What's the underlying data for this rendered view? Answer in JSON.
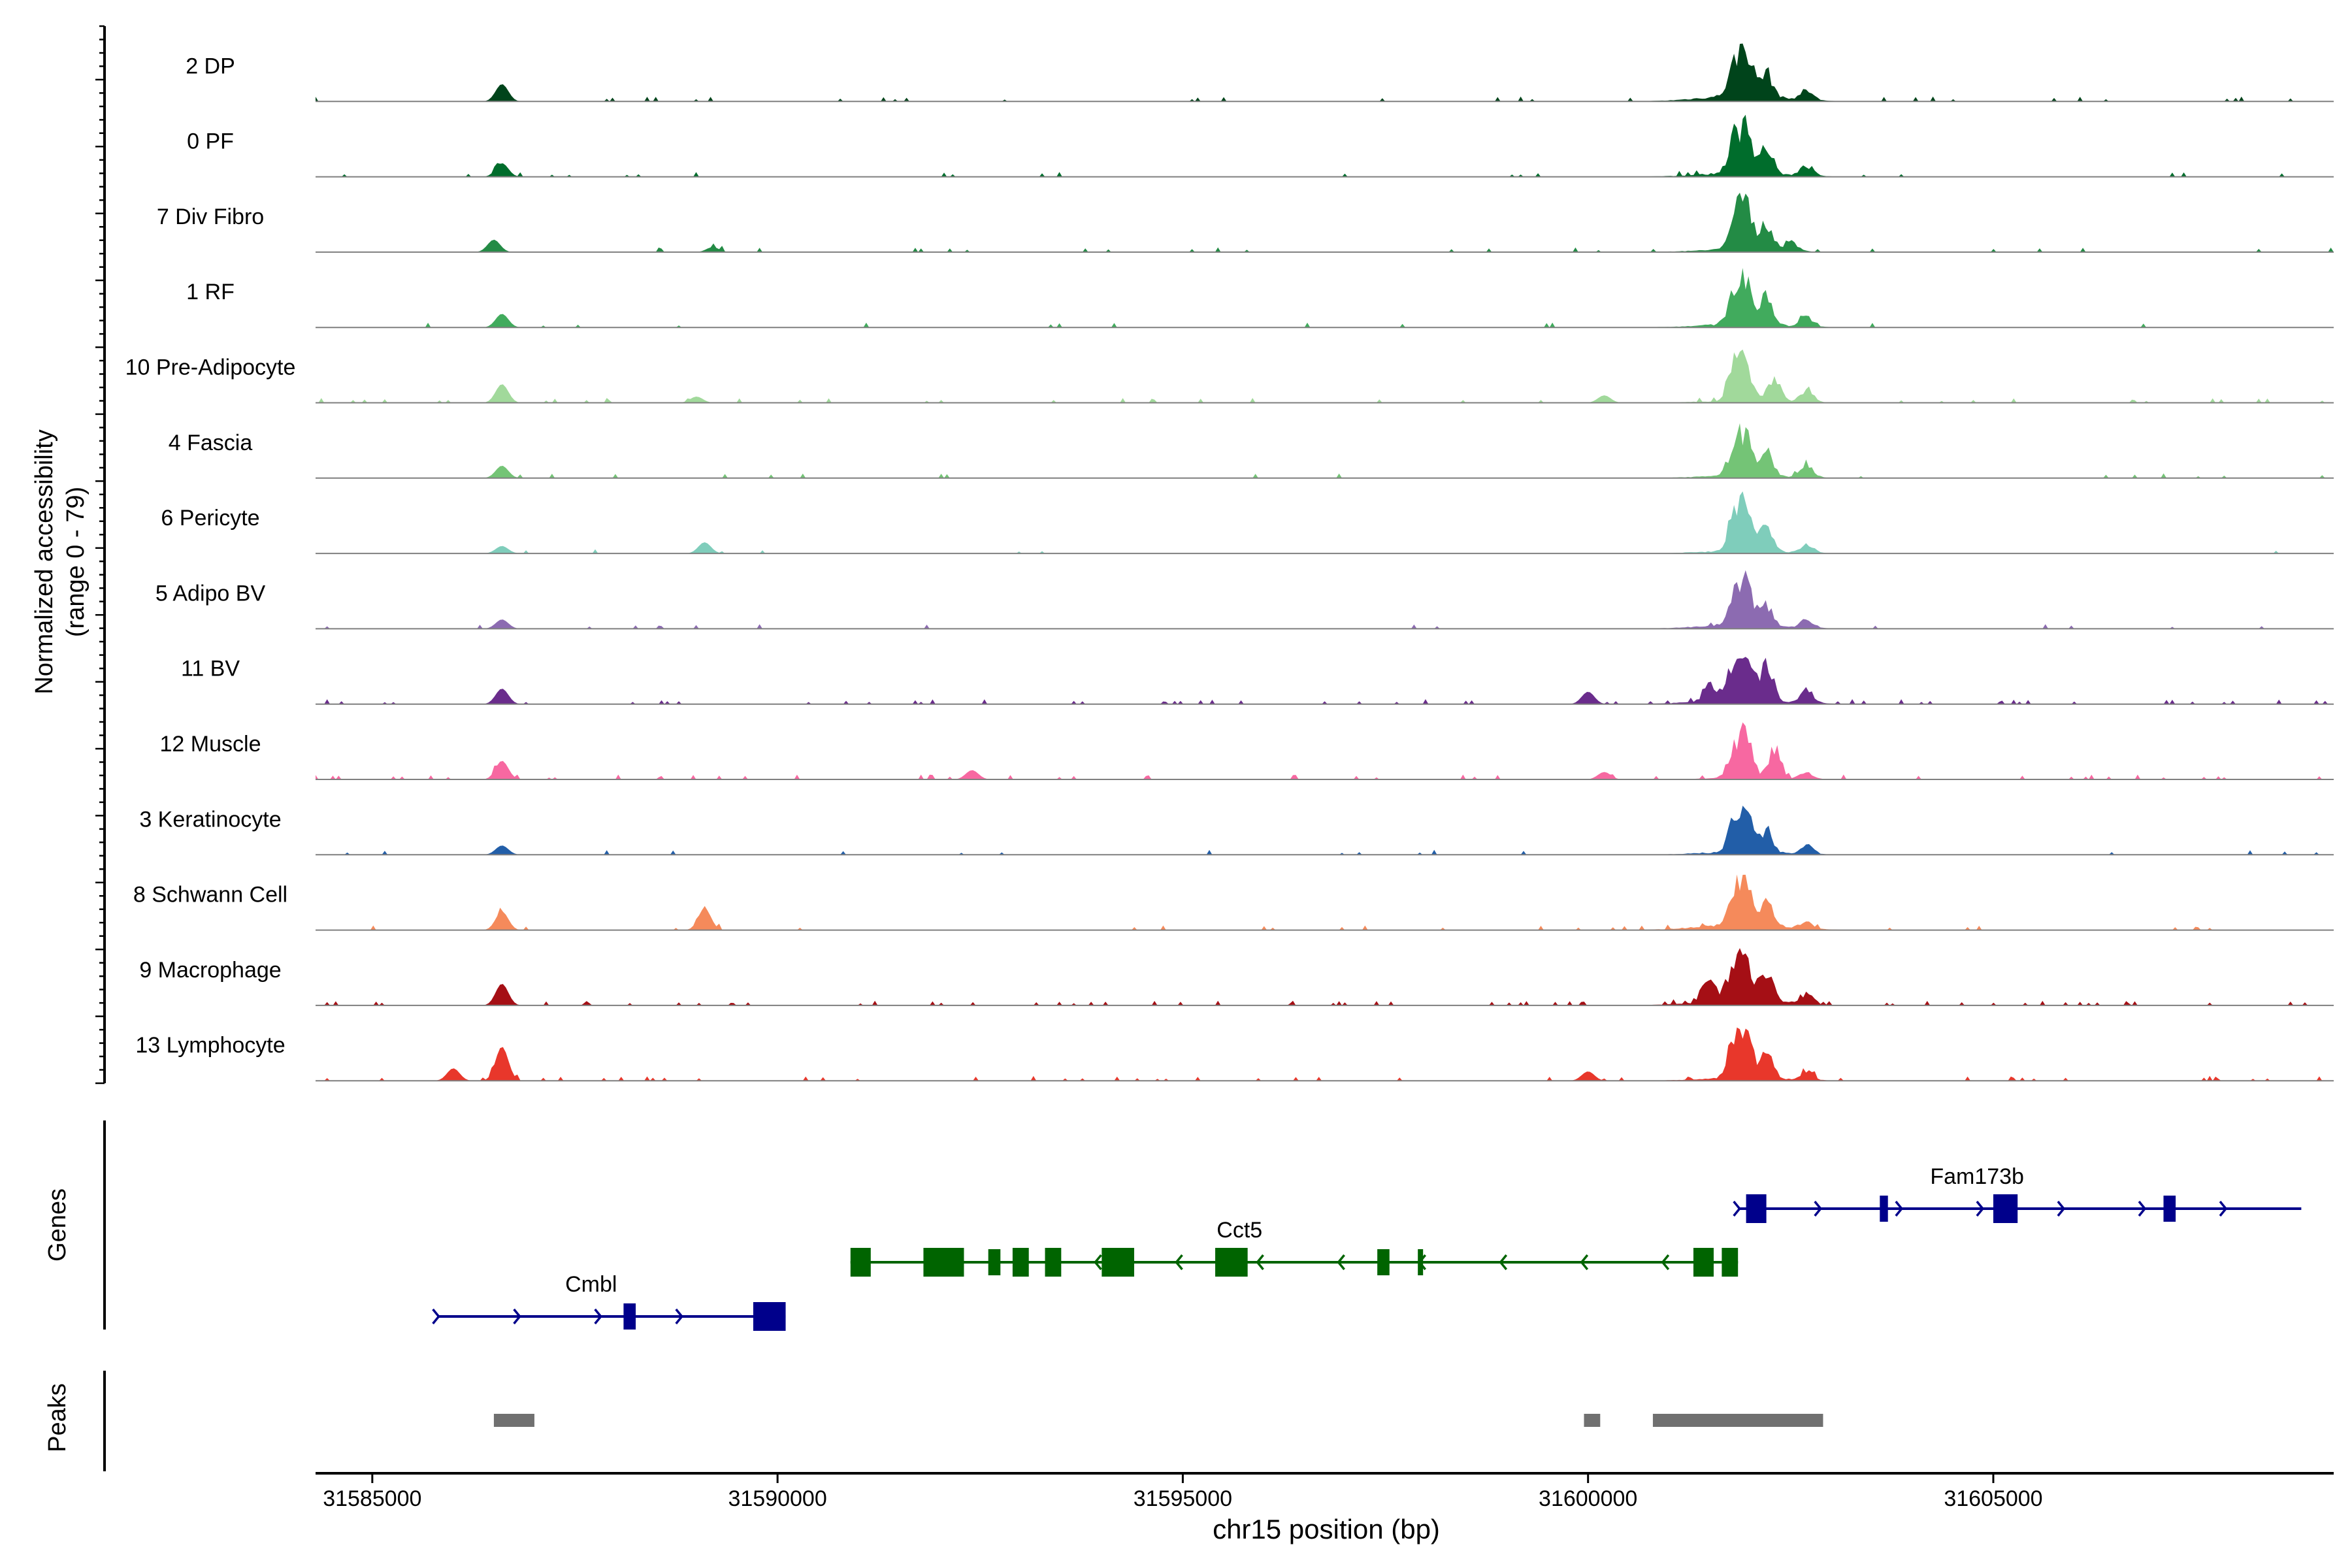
{
  "chart_data": {
    "type": "area",
    "title": "",
    "chromosome": "chr15",
    "xlabel": "chr15 position (bp)",
    "ylabel": "Normalized accessibility",
    "ylabel_range": "(range 0 - 79)",
    "xlim": [
      31584300,
      31609200
    ],
    "x_ticks": [
      31585000,
      31590000,
      31595000,
      31600000,
      31605000
    ],
    "x_tick_labels": [
      "31585000",
      "31590000",
      "31595000",
      "31600000",
      "31605000"
    ],
    "ylim": [
      0,
      79
    ],
    "panels": {
      "genes_label": "Genes",
      "peaks_label": "Peaks"
    },
    "tracks": [
      {
        "name": "2 DP",
        "color": "#00441b",
        "peaks": [
          [
            31586600,
            0.28
          ],
          [
            31601800,
            0.55
          ],
          [
            31601950,
            0.95
          ],
          [
            31602200,
            0.5
          ],
          [
            31602700,
            0.2
          ]
        ],
        "noise": 0.04,
        "broad": 0.12
      },
      {
        "name": "0 PF",
        "color": "#006d2c",
        "peaks": [
          [
            31586600,
            0.22
          ],
          [
            31601800,
            0.62
          ],
          [
            31601950,
            0.85
          ],
          [
            31602200,
            0.55
          ],
          [
            31602700,
            0.2
          ]
        ],
        "noise": 0.03,
        "broad": 0.08
      },
      {
        "name": "7 Div Fibro",
        "color": "#238b45",
        "peaks": [
          [
            31586500,
            0.2
          ],
          [
            31589200,
            0.08
          ],
          [
            31601800,
            0.6
          ],
          [
            31601950,
            0.9
          ],
          [
            31602200,
            0.55
          ],
          [
            31602500,
            0.2
          ]
        ],
        "noise": 0.04,
        "broad": 0.06
      },
      {
        "name": "1 RF",
        "color": "#41ab5d",
        "peaks": [
          [
            31586600,
            0.22
          ],
          [
            31601800,
            0.62
          ],
          [
            31601950,
            0.85
          ],
          [
            31602200,
            0.55
          ],
          [
            31602700,
            0.2
          ]
        ],
        "noise": 0.02,
        "broad": 0.07
      },
      {
        "name": "10 Pre-Adipocyte",
        "color": "#a1d99b",
        "peaks": [
          [
            31586600,
            0.3
          ],
          [
            31589000,
            0.1
          ],
          [
            31600200,
            0.12
          ],
          [
            31601800,
            0.72
          ],
          [
            31601950,
            0.72
          ],
          [
            31602300,
            0.5
          ],
          [
            31602700,
            0.28
          ]
        ],
        "noise": 0.05,
        "broad": 0.04
      },
      {
        "name": "4 Fascia",
        "color": "#74c476",
        "peaks": [
          [
            31586600,
            0.2
          ],
          [
            31601800,
            0.55
          ],
          [
            31601950,
            0.8
          ],
          [
            31602200,
            0.55
          ],
          [
            31602700,
            0.3
          ]
        ],
        "noise": 0.02,
        "broad": 0.05
      },
      {
        "name": "6 Pericyte",
        "color": "#7fcdbb",
        "peaks": [
          [
            31586600,
            0.12
          ],
          [
            31589100,
            0.18
          ],
          [
            31601800,
            0.7
          ],
          [
            31601950,
            0.85
          ],
          [
            31602200,
            0.5
          ],
          [
            31602700,
            0.18
          ]
        ],
        "noise": 0.02,
        "broad": 0.05
      },
      {
        "name": "5 Adipo BV",
        "color": "#8c6bb1",
        "peaks": [
          [
            31586600,
            0.15
          ],
          [
            31601800,
            0.55
          ],
          [
            31601950,
            0.85
          ],
          [
            31602200,
            0.45
          ],
          [
            31602700,
            0.18
          ]
        ],
        "noise": 0.02,
        "broad": 0.08
      },
      {
        "name": "11 BV",
        "color": "#6a2c8c",
        "peaks": [
          [
            31586600,
            0.25
          ],
          [
            31600000,
            0.2
          ],
          [
            31601500,
            0.3
          ],
          [
            31601800,
            0.7
          ],
          [
            31601950,
            0.85
          ],
          [
            31602200,
            0.7
          ],
          [
            31602700,
            0.3
          ]
        ],
        "noise": 0.08,
        "broad": 0.1
      },
      {
        "name": "12 Muscle",
        "color": "#f768a1",
        "peaks": [
          [
            31586600,
            0.3
          ],
          [
            31592400,
            0.15
          ],
          [
            31600200,
            0.12
          ],
          [
            31601800,
            0.55
          ],
          [
            31601950,
            0.95
          ],
          [
            31602300,
            0.65
          ],
          [
            31602700,
            0.15
          ]
        ],
        "noise": 0.08,
        "broad": 0.03
      },
      {
        "name": "3 Keratinocyte",
        "color": "#225ea8",
        "peaks": [
          [
            31586600,
            0.15
          ],
          [
            31601800,
            0.6
          ],
          [
            31601950,
            0.75
          ],
          [
            31602200,
            0.45
          ],
          [
            31602700,
            0.2
          ]
        ],
        "noise": 0.03,
        "broad": 0.06
      },
      {
        "name": "8 Schwann Cell",
        "color": "#f58a5b",
        "peaks": [
          [
            31586600,
            0.3
          ],
          [
            31589100,
            0.35
          ],
          [
            31601800,
            0.6
          ],
          [
            31601950,
            0.8
          ],
          [
            31602200,
            0.45
          ],
          [
            31602700,
            0.15
          ]
        ],
        "noise": 0.05,
        "broad": 0.12
      },
      {
        "name": "9 Macrophage",
        "color": "#a50f15",
        "peaks": [
          [
            31586600,
            0.35
          ],
          [
            31601500,
            0.5
          ],
          [
            31601800,
            0.8
          ],
          [
            31601950,
            0.85
          ],
          [
            31602200,
            0.65
          ],
          [
            31602700,
            0.22
          ]
        ],
        "noise": 0.1,
        "broad": 0.12
      },
      {
        "name": "13 Lymphocyte",
        "color": "#e8372b",
        "peaks": [
          [
            31586000,
            0.2
          ],
          [
            31586600,
            0.55
          ],
          [
            31600000,
            0.15
          ],
          [
            31601800,
            0.75
          ],
          [
            31601950,
            0.95
          ],
          [
            31602200,
            0.55
          ],
          [
            31602700,
            0.2
          ]
        ],
        "noise": 0.08,
        "broad": 0.06
      }
    ],
    "genes": [
      {
        "name": "Cmbl",
        "strand": "+",
        "color": "#00008b",
        "row": 2,
        "start": 31585800,
        "end": 31590100,
        "exons": [
          [
            31588100,
            31588250
          ],
          [
            31589700,
            31590100
          ]
        ]
      },
      {
        "name": "Cct5",
        "strand": "-",
        "color": "#006400",
        "row": 1,
        "start": 31590900,
        "end": 31601850,
        "exons": [
          [
            31590900,
            31591150
          ],
          [
            31591800,
            31592300
          ],
          [
            31592600,
            31592750
          ],
          [
            31592900,
            31593100
          ],
          [
            31593300,
            31593500
          ],
          [
            31594000,
            31594400
          ],
          [
            31595400,
            31595800
          ],
          [
            31597400,
            31597550
          ],
          [
            31597900,
            31597950
          ],
          [
            31601300,
            31601550
          ],
          [
            31601650,
            31601850
          ]
        ]
      },
      {
        "name": "Fam173b",
        "strand": "+",
        "color": "#00008b",
        "row": 0,
        "start": 31601850,
        "end": 31608800,
        "exons": [
          [
            31601950,
            31602200
          ],
          [
            31603600,
            31603700
          ],
          [
            31605000,
            31605300
          ],
          [
            31607100,
            31607250
          ]
        ]
      }
    ],
    "peaks": [
      [
        31586500,
        31587000
      ],
      [
        31599950,
        31600150
      ],
      [
        31600800,
        31602900
      ]
    ]
  }
}
